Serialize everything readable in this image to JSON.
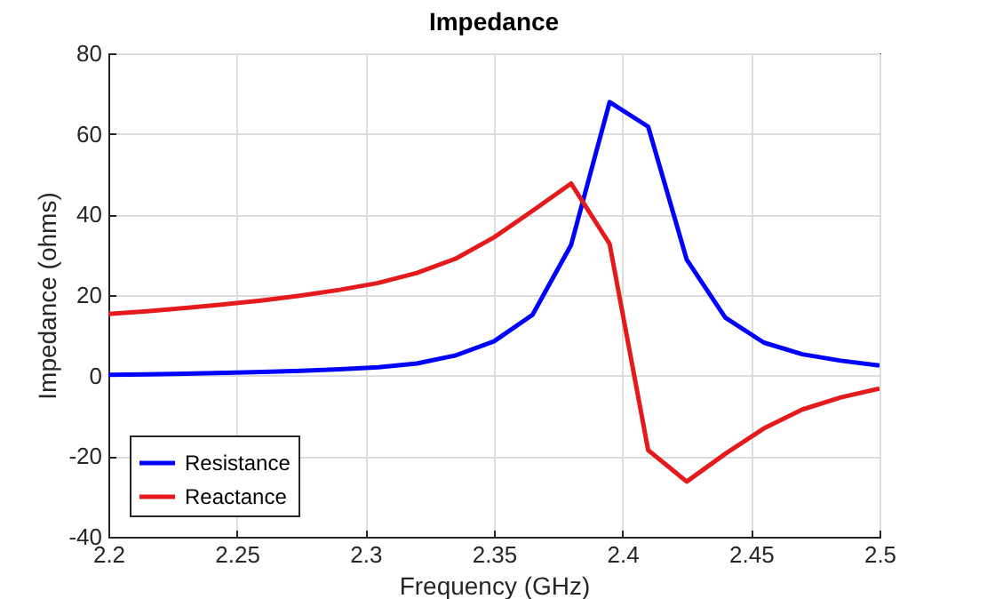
{
  "chart_data": {
    "type": "line",
    "title": "Impedance",
    "xlabel": "Frequency (GHz)",
    "ylabel": "Impedance (ohms)",
    "x": [
      2.2,
      2.215,
      2.23,
      2.245,
      2.26,
      2.275,
      2.29,
      2.305,
      2.32,
      2.335,
      2.35,
      2.365,
      2.38,
      2.395,
      2.41,
      2.425,
      2.44,
      2.455,
      2.47,
      2.485,
      2.5
    ],
    "series": [
      {
        "name": "Resistance",
        "color": "#0000ff",
        "values": [
          0.2,
          0.3,
          0.5,
          0.7,
          0.9,
          1.2,
          1.6,
          2.1,
          3.0,
          5.0,
          8.5,
          15.1,
          32.4,
          67.9,
          61.8,
          28.8,
          14.4,
          8.2,
          5.3,
          3.7,
          2.5
        ]
      },
      {
        "name": "Reactance",
        "color": "#e41a1c",
        "values": [
          15.3,
          16.0,
          16.8,
          17.7,
          18.7,
          19.9,
          21.3,
          23.0,
          25.5,
          29.0,
          34.3,
          40.9,
          47.7,
          32.7,
          -18.5,
          -26.3,
          -19.4,
          -13.1,
          -8.4,
          -5.4,
          -3.2
        ]
      }
    ],
    "xlim": [
      2.2,
      2.5
    ],
    "xticks": [
      2.2,
      2.25,
      2.3,
      2.35,
      2.4,
      2.45,
      2.5
    ],
    "ylim": [
      -40,
      80
    ],
    "yticks": [
      -40,
      -20,
      0,
      20,
      40,
      60,
      80
    ],
    "grid": true,
    "legend": "bottom left",
    "line_style": "solid",
    "marker": "none"
  }
}
